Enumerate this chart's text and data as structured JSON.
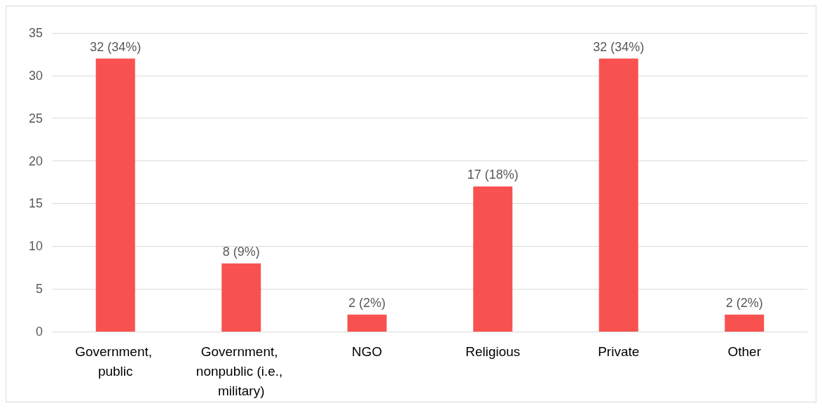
{
  "chart_data": {
    "type": "bar",
    "categories": [
      "Government, public",
      "Government, nonpublic (i.e., military)",
      "NGO",
      "Religious",
      "Private",
      "Other"
    ],
    "values": [
      32,
      8,
      2,
      17,
      32,
      2
    ],
    "value_labels": [
      "32 (34%)",
      "8 (9%)",
      "2 (2%)",
      "17 (18%)",
      "32 (34%)",
      "2 (2%)"
    ],
    "color": "#f85250",
    "ylim": [
      0,
      35
    ],
    "yticks": [
      0,
      5,
      10,
      15,
      20,
      25,
      30,
      35
    ],
    "grid": "y"
  }
}
